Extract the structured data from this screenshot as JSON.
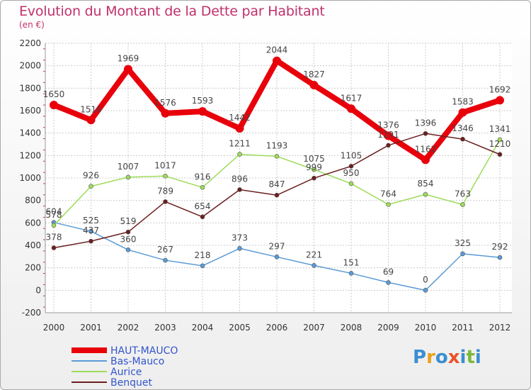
{
  "header": {
    "title": "Evolution du Montant de la Dette par Habitant",
    "unit": "(en €)"
  },
  "logo": {
    "text": "Proxiti",
    "letters": [
      "P",
      "r",
      "o",
      "x",
      "i",
      "t",
      "i"
    ],
    "colors": [
      "#3a8fd0",
      "#e9a21c",
      "#3a8fd0",
      "#e9542a",
      "#3a8fd0",
      "#7cb83a",
      "#3a8fd0"
    ]
  },
  "chart_data": {
    "type": "line",
    "categories": [
      "2000",
      "2001",
      "2002",
      "2003",
      "2004",
      "2005",
      "2006",
      "2007",
      "2008",
      "2009",
      "2010",
      "2011",
      "2012"
    ],
    "ylim": [
      -200,
      2200
    ],
    "yticks": [
      -200,
      0,
      200,
      400,
      600,
      800,
      1000,
      1200,
      1400,
      1600,
      1800,
      2000,
      2200
    ],
    "grid": true,
    "legend_position": "bottom-left",
    "series": [
      {
        "name": "HAUT-MAUCO",
        "color": "#e8000b",
        "width": 8,
        "values": [
          1650,
          1516,
          1969,
          1576,
          1593,
          1442,
          2044,
          1827,
          1617,
          1376,
          1162,
          1583,
          1692
        ]
      },
      {
        "name": "Bas-Mauco",
        "color": "#5b9bd5",
        "width": 1.5,
        "values": [
          604,
          525,
          360,
          267,
          218,
          373,
          297,
          221,
          151,
          69,
          0,
          325,
          292
        ]
      },
      {
        "name": "Aurice",
        "color": "#9edc5a",
        "width": 1.5,
        "values": [
          578,
          926,
          1007,
          1017,
          916,
          1211,
          1193,
          1075,
          950,
          764,
          854,
          763,
          1341
        ]
      },
      {
        "name": "Benquet",
        "color": "#6b1f1f",
        "width": 1.5,
        "values": [
          378,
          437,
          519,
          789,
          654,
          896,
          847,
          999,
          1105,
          1291,
          1396,
          1346,
          1210
        ]
      }
    ],
    "label_colors": [
      "#444444",
      "#444444",
      "#444444",
      "#444444"
    ]
  }
}
